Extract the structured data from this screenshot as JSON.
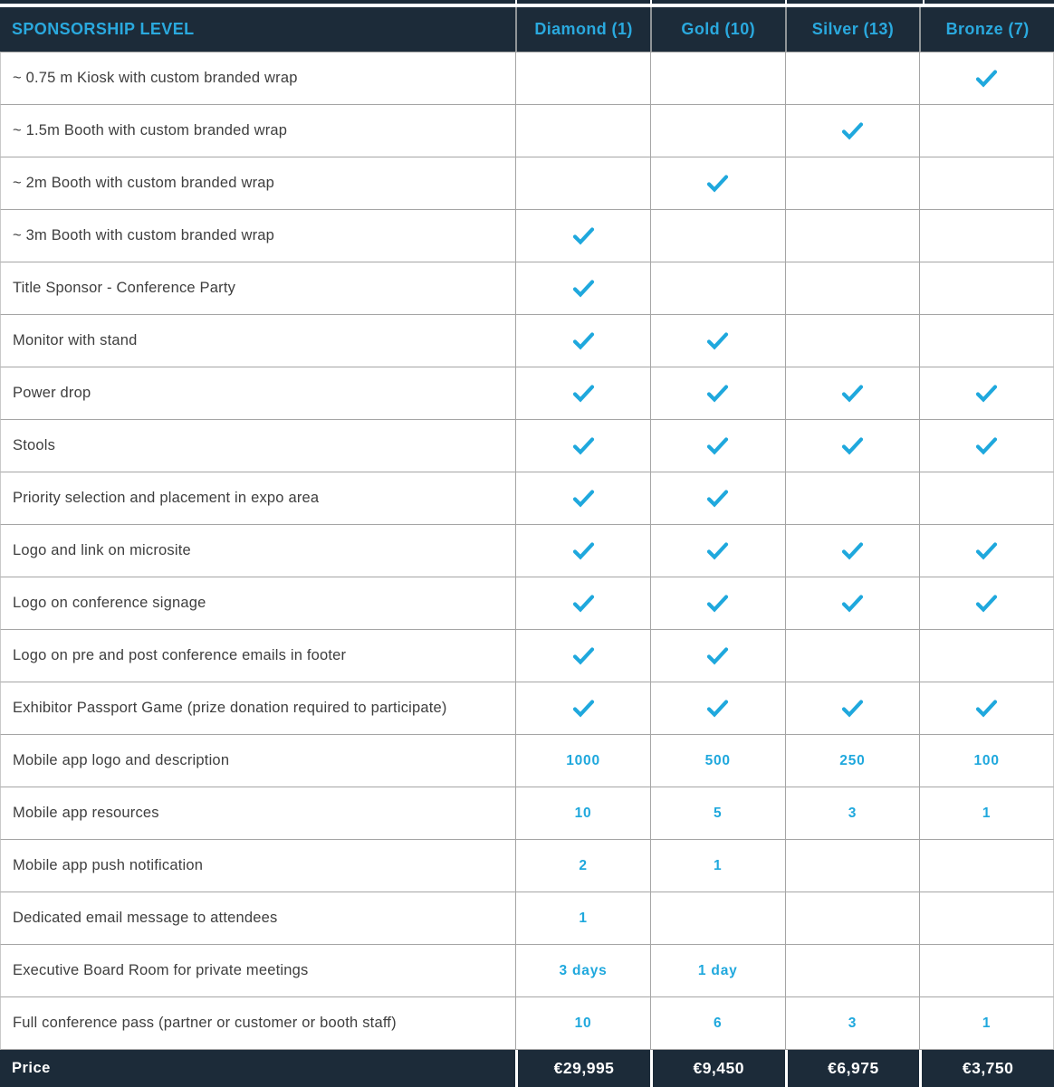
{
  "colors": {
    "header_bg": "#1c2b39",
    "accent_cyan": "#1fa8dd",
    "header_text_cyan": "#2aa9de",
    "body_text": "#3e3e3e",
    "gridline": "#a5a5a5",
    "price_text": "#ffffff"
  },
  "table": {
    "header": {
      "feature_label": "SPONSORSHIP LEVEL",
      "columns": [
        "Diamond (1)",
        "Gold (10)",
        "Silver (13)",
        "Bronze (7)"
      ]
    },
    "rows": [
      {
        "feature": "~ 0.75 m Kiosk with custom branded wrap",
        "values": [
          "",
          "",
          "",
          "check"
        ]
      },
      {
        "feature": "~ 1.5m Booth with custom branded wrap",
        "values": [
          "",
          "",
          "check",
          ""
        ]
      },
      {
        "feature": "~ 2m Booth with custom branded wrap",
        "values": [
          "",
          "check",
          "",
          ""
        ]
      },
      {
        "feature": "~ 3m Booth with custom branded wrap",
        "values": [
          "check",
          "",
          "",
          ""
        ]
      },
      {
        "feature": "Title Sponsor - Conference Party",
        "values": [
          "check",
          "",
          "",
          ""
        ]
      },
      {
        "feature": "Monitor with stand",
        "values": [
          "check",
          "check",
          "",
          ""
        ]
      },
      {
        "feature": "Power drop",
        "values": [
          "check",
          "check",
          "check",
          "check"
        ]
      },
      {
        "feature": "Stools",
        "values": [
          "check",
          "check",
          "check",
          "check"
        ]
      },
      {
        "feature": "Priority selection and placement in expo area",
        "values": [
          "check",
          "check",
          "",
          ""
        ]
      },
      {
        "feature": "Logo and link on microsite",
        "values": [
          "check",
          "check",
          "check",
          "check"
        ]
      },
      {
        "feature": "Logo on conference signage",
        "values": [
          "check",
          "check",
          "check",
          "check"
        ]
      },
      {
        "feature": "Logo on pre and post conference emails in footer",
        "values": [
          "check",
          "check",
          "",
          ""
        ]
      },
      {
        "feature": "Exhibitor Passport Game (prize donation required to participate)",
        "values": [
          "check",
          "check",
          "check",
          "check"
        ]
      },
      {
        "feature": "Mobile app logo and description",
        "values": [
          "1000",
          "500",
          "250",
          "100"
        ]
      },
      {
        "feature": "Mobile app resources",
        "values": [
          "10",
          "5",
          "3",
          "1"
        ]
      },
      {
        "feature": "Mobile app push notification",
        "values": [
          "2",
          "1",
          "",
          ""
        ]
      },
      {
        "feature": "Dedicated email message to attendees",
        "values": [
          "1",
          "",
          "",
          ""
        ]
      },
      {
        "feature": "Executive Board Room for private meetings",
        "values": [
          "3 days",
          "1 day",
          "",
          ""
        ]
      },
      {
        "feature": "Full conference pass (partner or customer or booth staff)",
        "values": [
          "10",
          "6",
          "3",
          "1"
        ]
      }
    ],
    "footer": {
      "label": "Price",
      "values": [
        "€29,995",
        "€9,450",
        "€6,975",
        "€3,750"
      ]
    }
  },
  "icons": {
    "check": "check-icon"
  }
}
